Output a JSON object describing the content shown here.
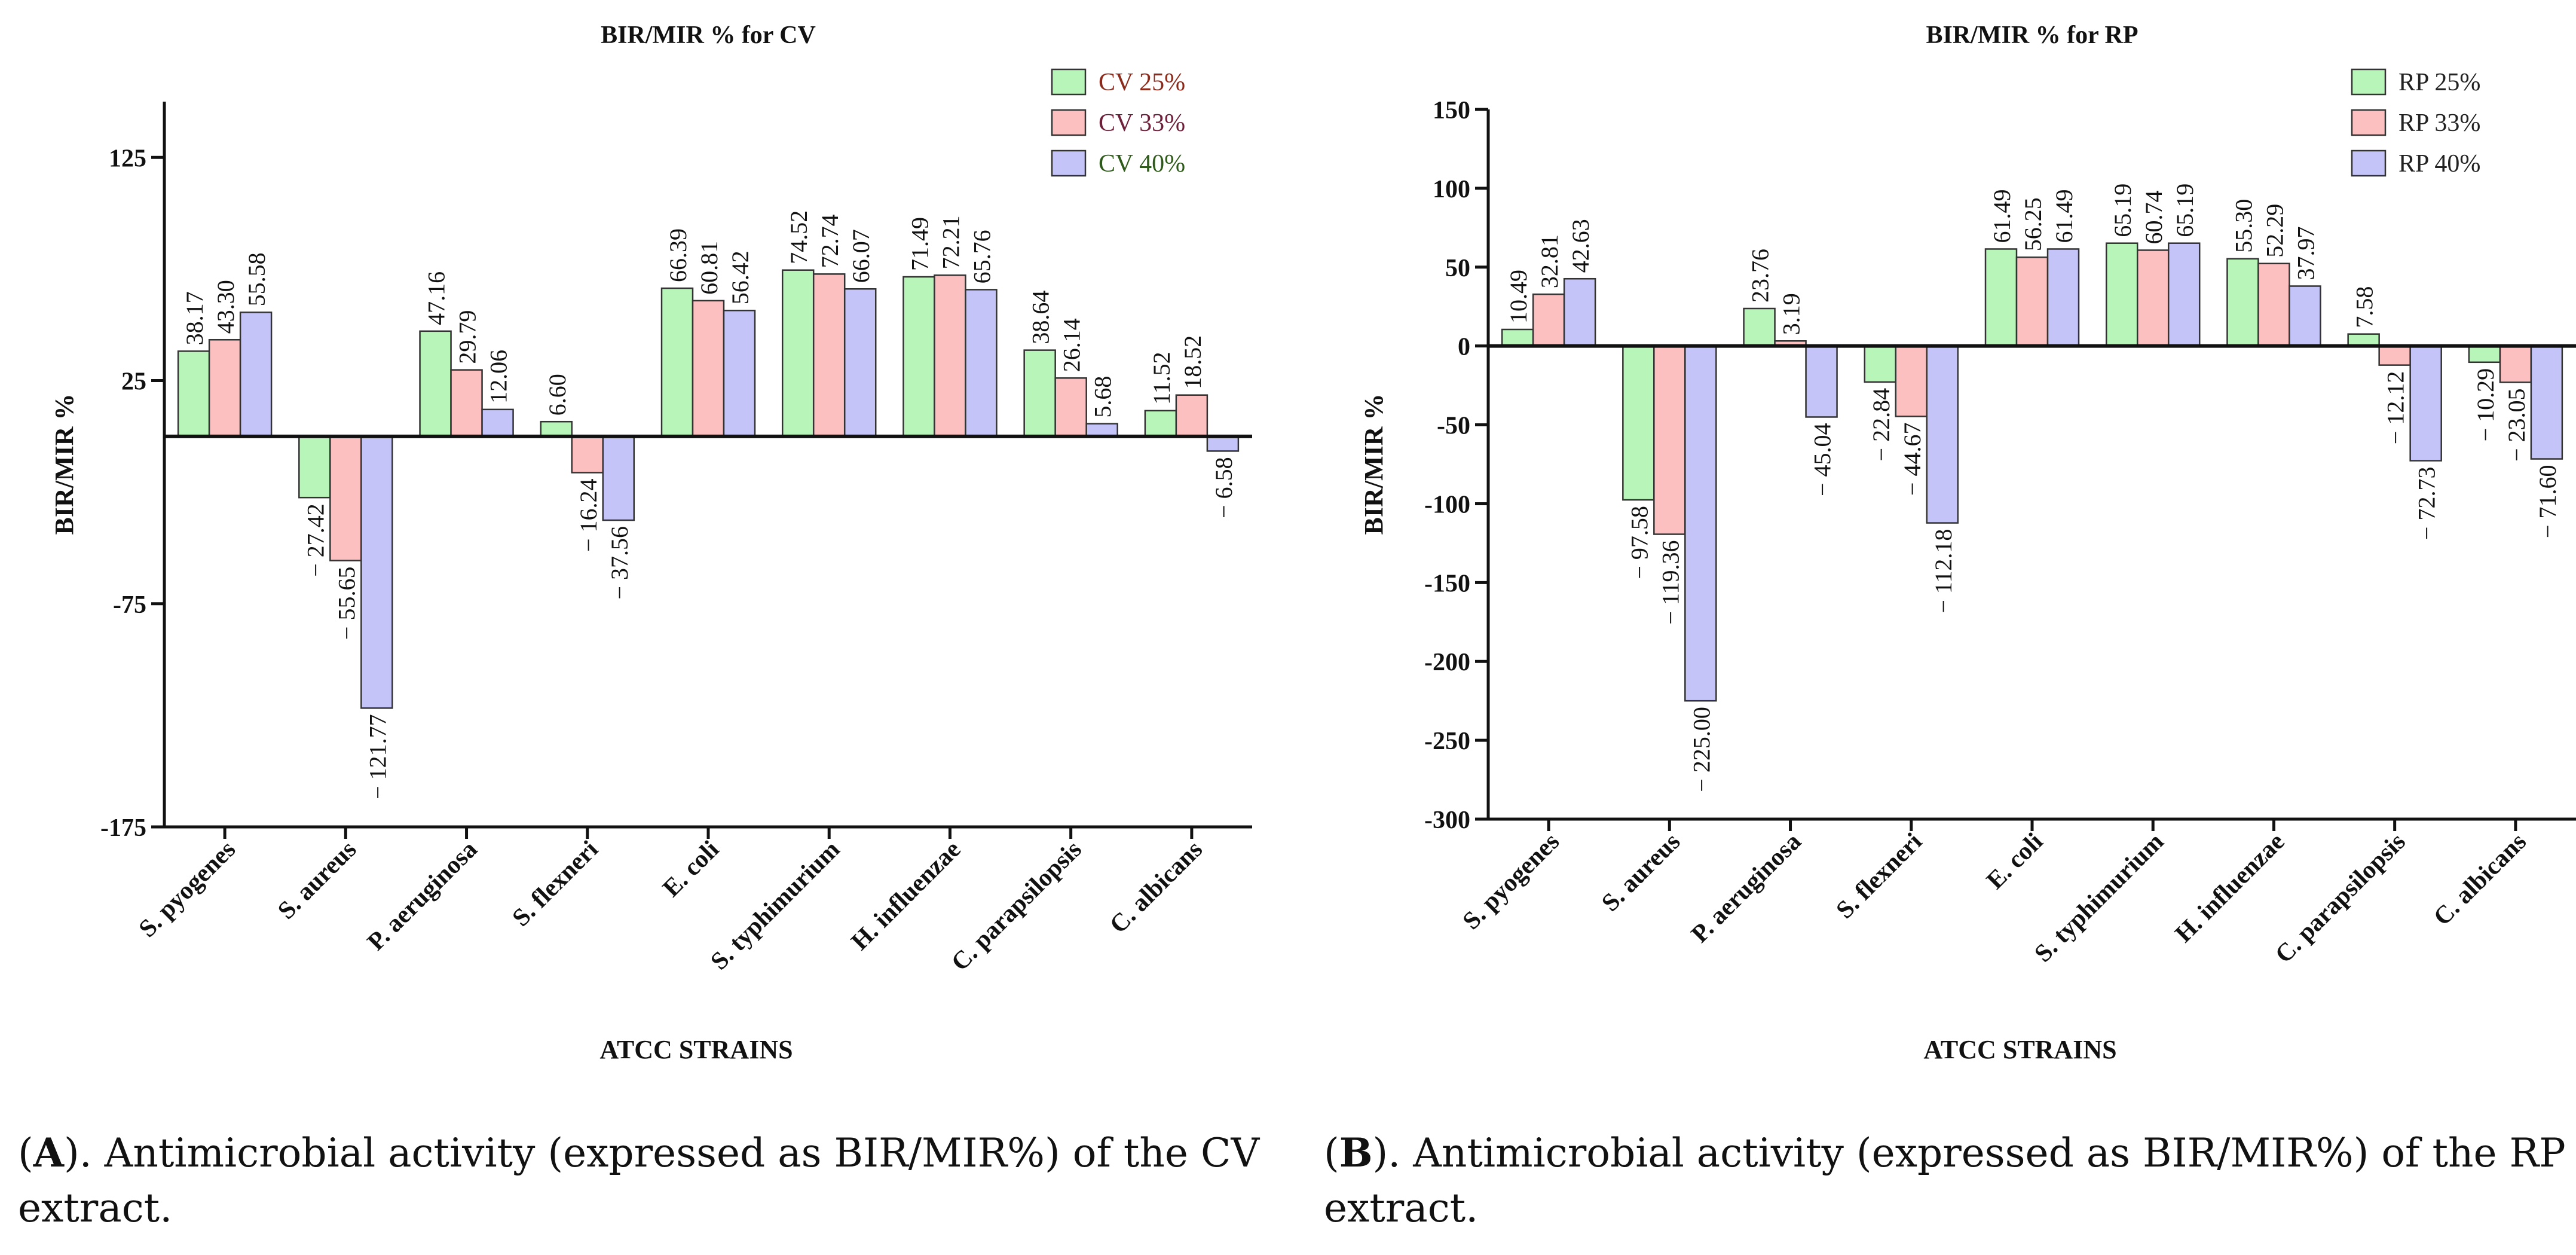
{
  "chart_data": [
    {
      "type": "bar",
      "title": "BIR/MIR % for CV",
      "xlabel": "ATCC STRAINS",
      "ylabel": "BIR/MIR %",
      "ylim": [
        -175,
        150
      ],
      "yticks": [
        125,
        25,
        -75,
        -175
      ],
      "ytick_labels": [
        "125",
        "25",
        "-75",
        "-175"
      ],
      "categories": [
        "S. pyogenes",
        "S. aureus",
        "P. aeruginosa",
        "S. flexneri",
        "E. coli",
        "S. typhimurium",
        "H. influenzae",
        "C. parapsilopsis",
        "C. albicans"
      ],
      "series": [
        {
          "name": "CV 25%",
          "color": "#b8f5b8",
          "legend_text_color": "#8b2a1a",
          "values": [
            38.17,
            -27.42,
            47.16,
            6.6,
            66.39,
            74.52,
            71.49,
            38.64,
            11.52
          ],
          "labels": [
            "38.17",
            "− 27.42",
            "47.16",
            "6.60",
            "66.39",
            "74.52",
            "71.49",
            "38.64",
            "11.52"
          ]
        },
        {
          "name": "CV 33%",
          "color": "#fcc0c0",
          "legend_text_color": "#6e1f3a",
          "values": [
            43.3,
            -55.65,
            29.79,
            -16.24,
            60.81,
            72.74,
            72.21,
            26.14,
            18.52
          ],
          "labels": [
            "43.30",
            "− 55.65",
            "29.79",
            "− 16.24",
            "60.81",
            "72.74",
            "72.21",
            "26.14",
            "18.52"
          ]
        },
        {
          "name": "CV 40%",
          "color": "#c4c4f8",
          "legend_text_color": "#2e5a1a",
          "values": [
            55.58,
            -121.77,
            12.06,
            -37.56,
            56.42,
            66.07,
            65.76,
            5.68,
            -6.58
          ],
          "labels": [
            "55.58",
            "− 121.77",
            "12.06",
            "− 37.56",
            "56.42",
            "66.07",
            "65.76",
            "5.68",
            "− 6.58"
          ]
        }
      ],
      "legend": "top-right",
      "grid": false
    },
    {
      "type": "bar",
      "title": "BIR/MIR % for RP",
      "xlabel": "ATCC STRAINS",
      "ylabel": "BIR/MIR %",
      "ylim": [
        -300,
        150
      ],
      "yticks": [
        150,
        100,
        50,
        0,
        -50,
        -100,
        -150,
        -200,
        -250,
        -300
      ],
      "ytick_labels": [
        "150",
        "100",
        "50",
        "0",
        "-50",
        "-100",
        "-150",
        "-200",
        "-250",
        "-300"
      ],
      "categories": [
        "S. pyogenes",
        "S. aureus",
        "P. aeruginosa",
        "S. flexneri",
        "E. coli",
        "S. typhimurium",
        "H. influenzae",
        "C. parapsilopsis",
        "C. albicans"
      ],
      "series": [
        {
          "name": "RP 25%",
          "color": "#b8f5b8",
          "legend_text_color": "#222222",
          "values": [
            10.49,
            -97.58,
            23.76,
            -22.84,
            61.49,
            65.19,
            55.3,
            7.58,
            -10.29
          ],
          "labels": [
            "10.49",
            "− 97.58",
            "23.76",
            "− 22.84",
            "61.49",
            "65.19",
            "55.30",
            "7.58",
            "− 10.29"
          ]
        },
        {
          "name": "RP 33%",
          "color": "#fcc0c0",
          "legend_text_color": "#222222",
          "values": [
            32.81,
            -119.36,
            3.19,
            -44.67,
            56.25,
            60.74,
            52.29,
            -12.12,
            -23.05
          ],
          "labels": [
            "32.81",
            "− 119.36",
            "3.19",
            "− 44.67",
            "56.25",
            "60.74",
            "52.29",
            "− 12.12",
            "− 23.05"
          ]
        },
        {
          "name": "RP 40%",
          "color": "#c4c4f8",
          "legend_text_color": "#222222",
          "values": [
            42.63,
            -225.0,
            -45.04,
            -112.18,
            61.49,
            65.19,
            37.97,
            -72.73,
            -71.6
          ],
          "labels": [
            "42.63",
            "− 225.00",
            "− 45.04",
            "− 112.18",
            "61.49",
            "65.19",
            "37.97",
            "− 72.73",
            "− 71.60"
          ]
        }
      ],
      "legend": "top-right",
      "grid": false
    }
  ],
  "captions": {
    "a_letter": "A",
    "a_text": "). Antimicrobial activity (expressed as BIR/MIR%) of the CV extract.",
    "b_letter": "B",
    "b_text": "). Antimicrobial activity (expressed as BIR/MIR%) of the RP extract."
  }
}
